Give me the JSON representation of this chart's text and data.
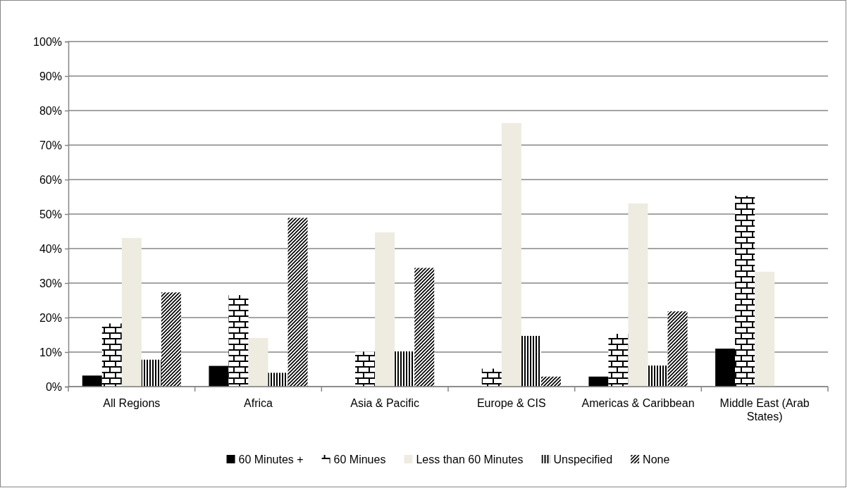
{
  "chart_data": {
    "type": "bar",
    "categories": [
      "All Regions",
      "Africa",
      "Asia & Pacific",
      "Europe & CIS",
      "Americas & Caribbean",
      "Middle East (Arab States)"
    ],
    "series": [
      {
        "name": "60 Minutes +",
        "color": "#000000",
        "values": [
          3.2,
          6.0,
          0,
          0,
          2.9,
          11.0
        ]
      },
      {
        "name": "60 Minues",
        "color": "#000000",
        "values": [
          18.3,
          26.5,
          10.1,
          5.2,
          15.3,
          55.3
        ]
      },
      {
        "name": "Less than 60 Minutes",
        "color": "#eeece1",
        "values": [
          43.1,
          14.1,
          44.7,
          76.4,
          53.1,
          33.3
        ]
      },
      {
        "name": "Unspecified",
        "color": "#000000",
        "values": [
          7.8,
          4.0,
          10.2,
          14.7,
          6.1,
          0
        ]
      },
      {
        "name": "None",
        "color": "#000000",
        "values": [
          27.3,
          48.9,
          34.4,
          2.9,
          21.8,
          0
        ]
      }
    ],
    "ylim": [
      0,
      100
    ],
    "yticks": [
      {
        "value": 0,
        "label": "0%"
      },
      {
        "value": 10,
        "label": "10%"
      },
      {
        "value": 20,
        "label": "20%"
      },
      {
        "value": 30,
        "label": "30%"
      },
      {
        "value": 40,
        "label": "40%"
      },
      {
        "value": 50,
        "label": "50%"
      },
      {
        "value": 60,
        "label": "60%"
      },
      {
        "value": 70,
        "label": "70%"
      },
      {
        "value": 80,
        "label": "80%"
      },
      {
        "value": 90,
        "label": "90%"
      },
      {
        "value": 100,
        "label": "100%"
      }
    ],
    "grid": "y",
    "legend": "bottom"
  }
}
